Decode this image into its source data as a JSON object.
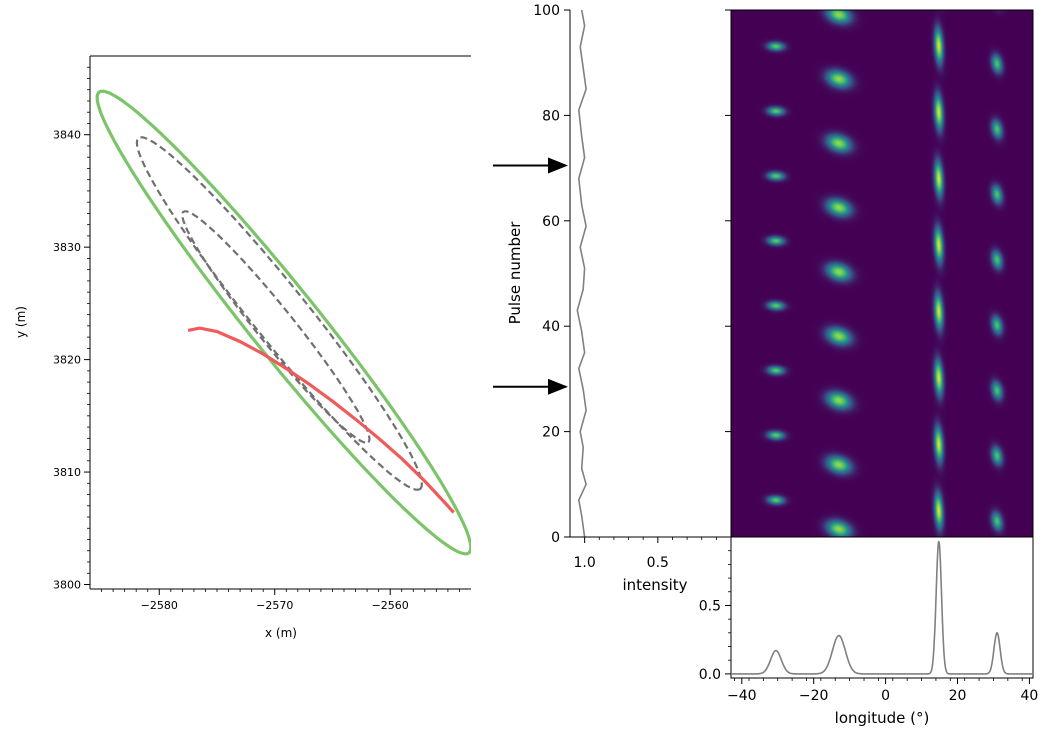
{
  "chart_data": [
    {
      "id": "ellipse-panel",
      "type": "line",
      "xlabel": "x (m)",
      "ylabel": "y (m)",
      "xlim": [
        -2586,
        -2553
      ],
      "ylim": [
        3799.6,
        3847.0
      ],
      "xticks": [
        -2580,
        -2570,
        -2560
      ],
      "yticks": [
        3800,
        3810,
        3820,
        3830,
        3840
      ],
      "xtick_labels": [
        "−2580",
        "−2570",
        "−2560"
      ],
      "ytick_labels": [
        "3800",
        "3810",
        "3820",
        "3830",
        "3840"
      ],
      "series": [
        {
          "name": "outer-ellipse",
          "style": "solid",
          "color": "#7cc46a",
          "center": [
            -2569.2,
            3823.3
          ],
          "semi_major": 26.0,
          "semi_minor": 3.0,
          "angle_deg": -52
        },
        {
          "name": "middle-ellipse",
          "style": "dashed",
          "color": "#707070",
          "center": [
            -2569.6,
            3824.1
          ],
          "semi_major": 19.8,
          "semi_minor": 2.4,
          "angle_deg": -52
        },
        {
          "name": "inner-ellipse",
          "style": "dashed",
          "color": "#707070",
          "center": [
            -2569.9,
            3822.9
          ],
          "semi_major": 13.0,
          "semi_minor": 1.6,
          "angle_deg": -52
        },
        {
          "name": "sightline-track",
          "style": "solid",
          "color": "#ef5a5a",
          "x": [
            -2577.5,
            -2576.5,
            -2575,
            -2573,
            -2571,
            -2569,
            -2567,
            -2565,
            -2563,
            -2561,
            -2559,
            -2557,
            -2555.2,
            -2554.5
          ],
          "y": [
            3822.6,
            3822.8,
            3822.5,
            3821.6,
            3820.5,
            3819.2,
            3817.8,
            3816.3,
            3814.7,
            3813.0,
            3811.2,
            3809.2,
            3807.2,
            3806.4
          ]
        }
      ]
    },
    {
      "id": "pulse-stack",
      "type": "heatmap",
      "ylabel": "Pulse number",
      "ylim": [
        0,
        100
      ],
      "xlim": [
        -43,
        41
      ],
      "yticks": [
        0,
        20,
        40,
        60,
        80,
        100
      ],
      "colormap": [
        "#440154",
        "#3b528b",
        "#21918c",
        "#5ec962",
        "#fde725"
      ],
      "background": "#440154",
      "components": [
        {
          "name": "leading",
          "lon": -30.5,
          "period": 12.3,
          "phase": 7.0,
          "drift": -0.25,
          "width_lon": 1.6,
          "width_pulse": 0.55,
          "amp": 0.75
        },
        {
          "name": "second",
          "lon": -13.0,
          "period": 12.2,
          "phase": 1.5,
          "drift": -0.55,
          "width_lon": 2.2,
          "width_pulse": 1.1,
          "amp": 0.85
        },
        {
          "name": "central",
          "lon": 14.8,
          "period": 12.6,
          "phase": 5.0,
          "drift": -0.08,
          "width_lon": 0.8,
          "width_pulse": 2.3,
          "amp": 0.95
        },
        {
          "name": "trailing",
          "lon": 31.0,
          "period": 12.4,
          "phase": 3.0,
          "drift": -0.22,
          "width_lon": 1.0,
          "width_pulse": 1.2,
          "amp": 0.7
        }
      ],
      "arrows_at_pulse": [
        70.5,
        28.5
      ]
    },
    {
      "id": "pulse-energy",
      "type": "line",
      "xlabel": "intensity",
      "xlim": [
        1.1,
        0.0
      ],
      "xticks": [
        1.0,
        0.5
      ],
      "xtick_labels": [
        "1.0",
        "0.5"
      ],
      "color": "#808080",
      "pulse": [
        0,
        4,
        7,
        10,
        13,
        17,
        20,
        24,
        28,
        32,
        35,
        39,
        43,
        47,
        51,
        55,
        59,
        63,
        68,
        72,
        76,
        81,
        85,
        89,
        93,
        97,
        100
      ],
      "intensity": [
        1.0,
        1.02,
        1.04,
        0.99,
        1.02,
        1.01,
        1.03,
        0.99,
        1.01,
        1.04,
        1.0,
        1.02,
        1.05,
        1.01,
        1.0,
        1.03,
        0.99,
        1.02,
        1.04,
        1.0,
        1.02,
        1.04,
        0.99,
        1.01,
        1.03,
        1.0,
        1.02
      ]
    },
    {
      "id": "average-profile",
      "type": "line",
      "xlabel": "longitude (°)",
      "xlim": [
        -43,
        41
      ],
      "ylim": [
        -0.03,
        1.0
      ],
      "xticks": [
        -40,
        -20,
        0,
        20,
        40
      ],
      "xtick_labels": [
        "−40",
        "−20",
        "0",
        "20",
        "40"
      ],
      "yticks": [
        0.0,
        0.5
      ],
      "ytick_labels": [
        "0.0",
        "0.5"
      ],
      "color": "#808080",
      "peaks": [
        {
          "lon": -30.5,
          "height": 0.17,
          "sigma": 1.5
        },
        {
          "lon": -13.0,
          "height": 0.28,
          "sigma": 1.8
        },
        {
          "lon": 14.8,
          "height": 0.97,
          "sigma": 0.75
        },
        {
          "lon": 31.0,
          "height": 0.3,
          "sigma": 0.85
        }
      ]
    }
  ]
}
